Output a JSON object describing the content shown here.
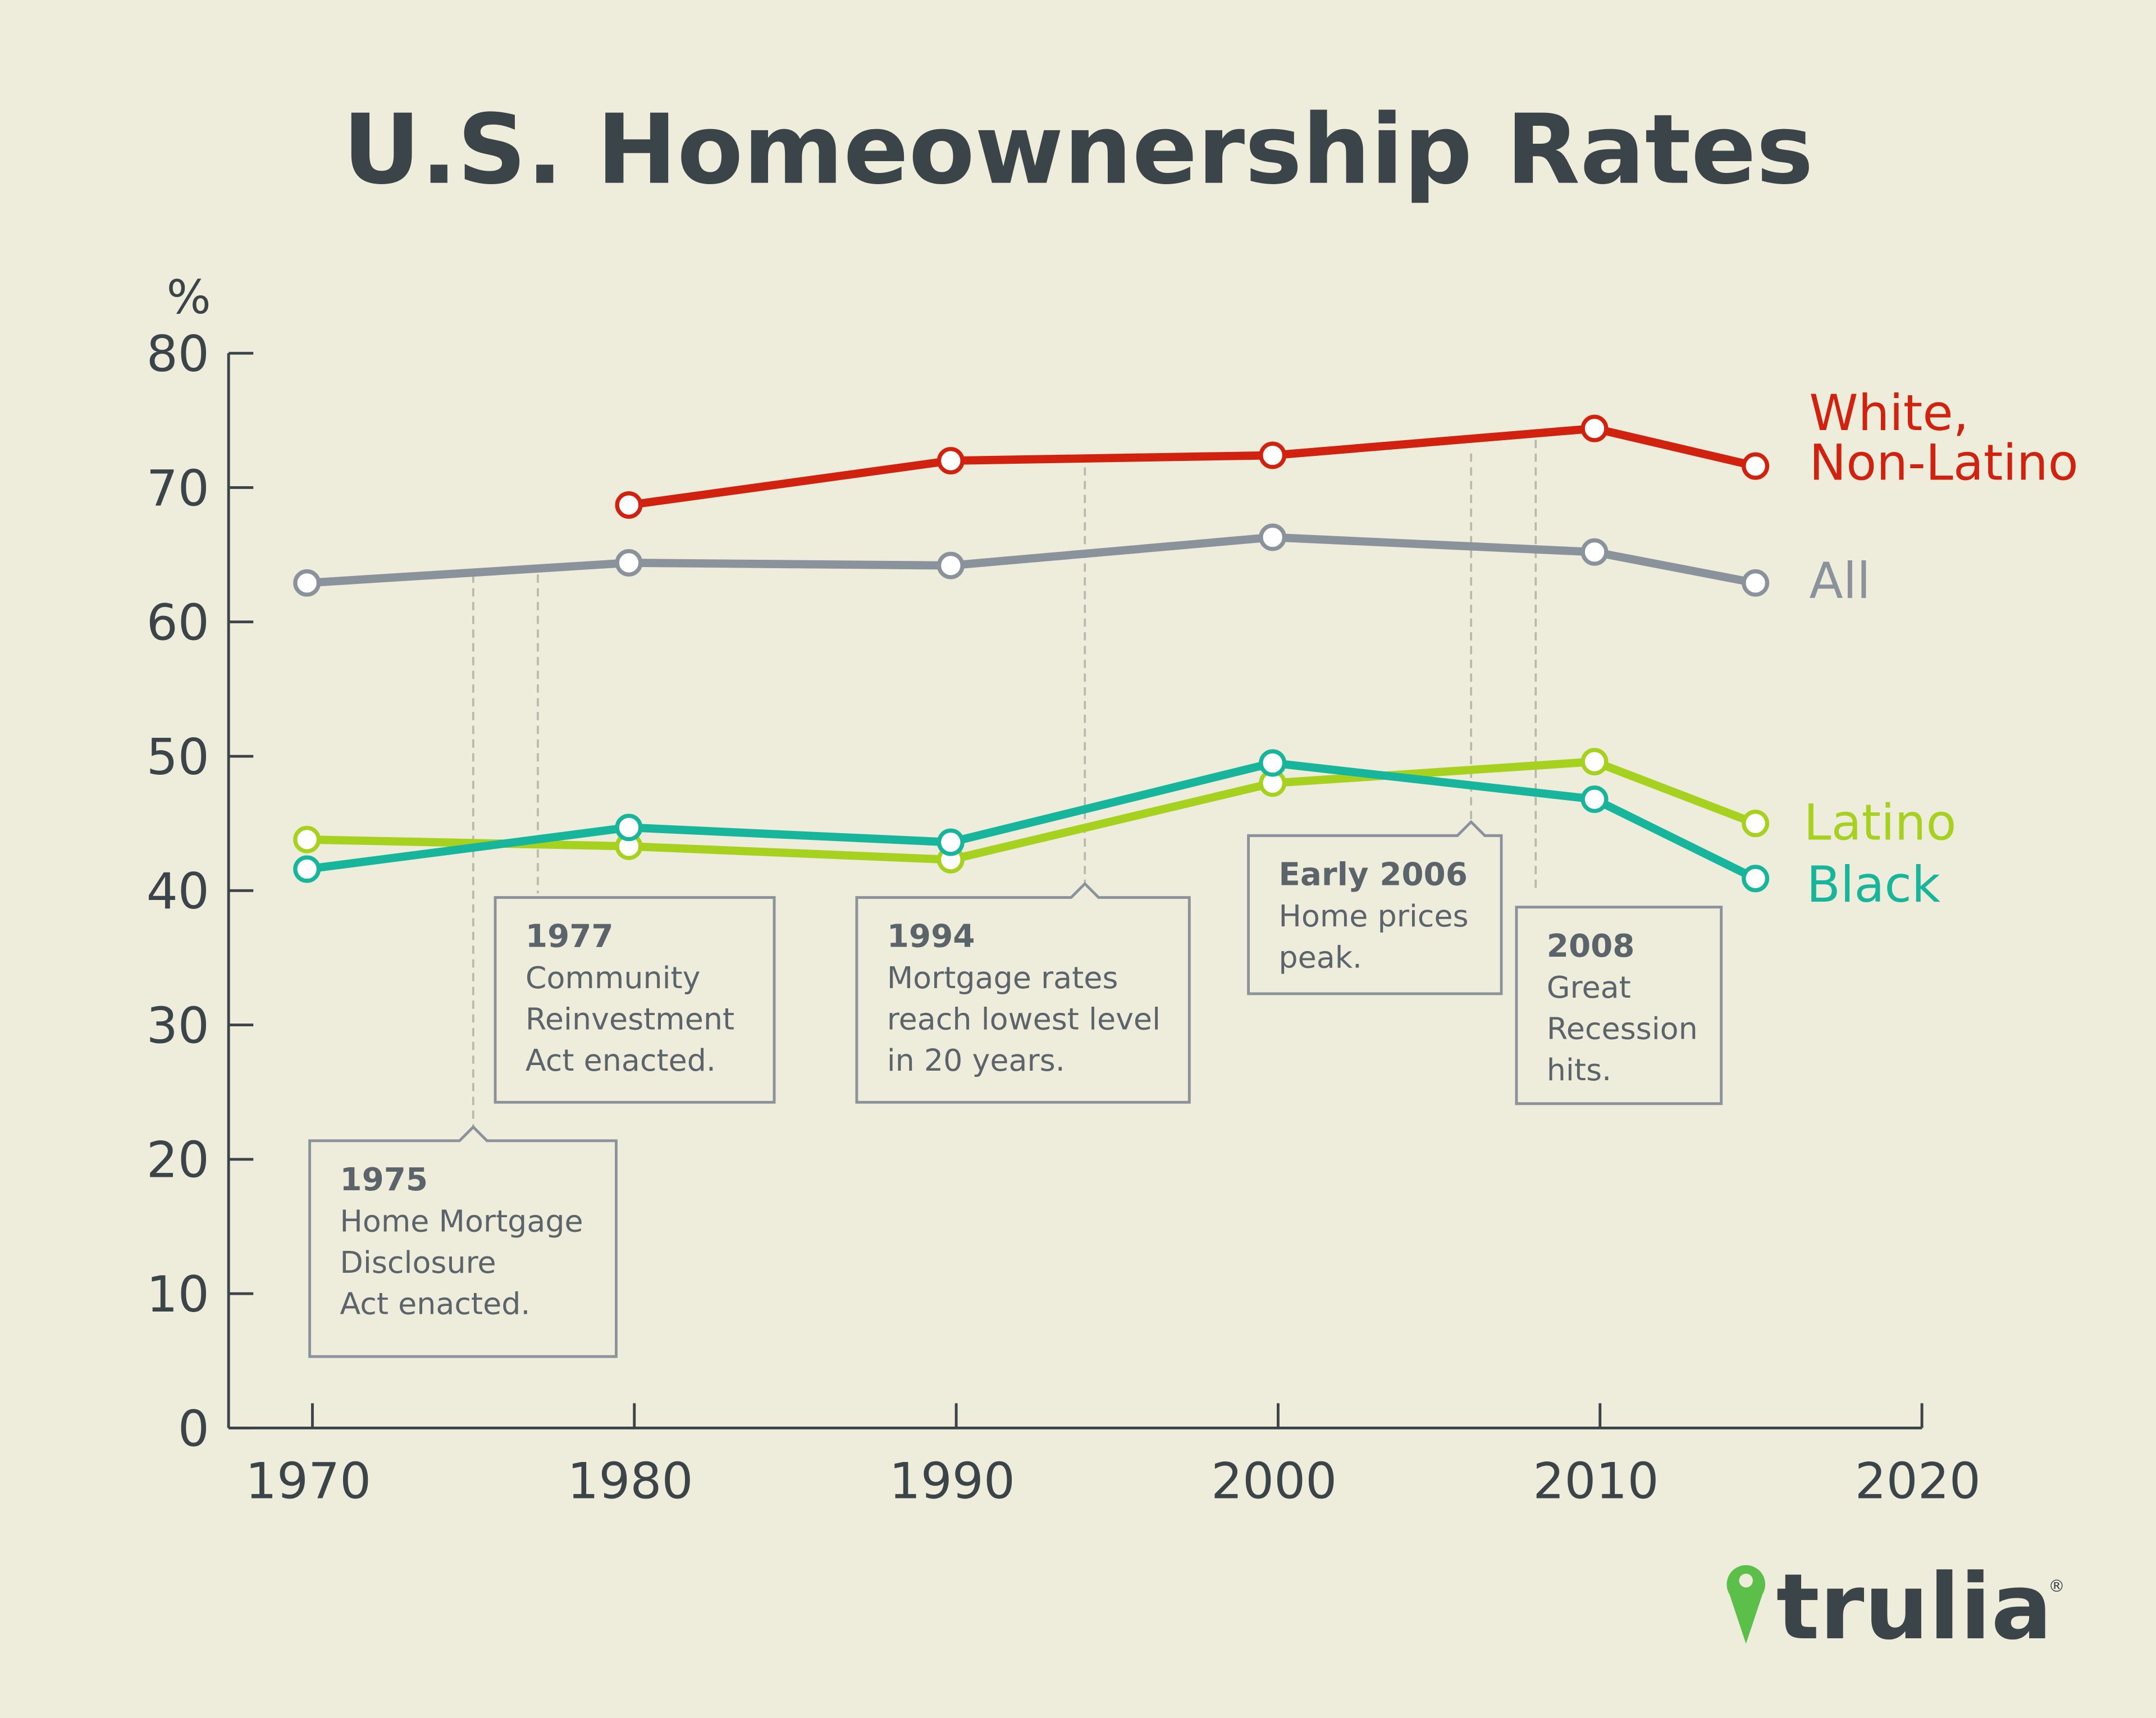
{
  "chart_data": {
    "type": "line",
    "title": "U.S. Homeownership Rates",
    "ylabel": "%",
    "xlabel": "",
    "xlim": [
      1967.5,
      2020
    ],
    "ylim": [
      0,
      80
    ],
    "x_ticks": [
      "1970",
      "1980",
      "1990",
      "2000",
      "2010",
      "2020"
    ],
    "y_ticks": [
      "0",
      "10",
      "20",
      "30",
      "40",
      "50",
      "60",
      "70",
      "80"
    ],
    "grid": false,
    "legend": "inline labels at right end of each series",
    "series": [
      {
        "name": "White, Non-Latino",
        "label_lines": [
          "White,",
          "Non-Latino"
        ],
        "color": "#d0220f",
        "x": [
          1980,
          1990,
          2000,
          2010,
          2015
        ],
        "values": [
          68.7,
          72.0,
          72.4,
          74.4,
          71.6
        ]
      },
      {
        "name": "All",
        "label_lines": [
          "All"
        ],
        "color": "#8a939b",
        "x": [
          1970,
          1980,
          1990,
          2000,
          2010,
          2015
        ],
        "values": [
          62.9,
          64.4,
          64.2,
          66.3,
          65.2,
          62.9
        ]
      },
      {
        "name": "Latino",
        "label_lines": [
          "Latino"
        ],
        "color": "#a6d11f",
        "x": [
          1970,
          1980,
          1990,
          2000,
          2010,
          2015
        ],
        "values": [
          43.8,
          43.3,
          42.3,
          48.0,
          49.6,
          45.0
        ]
      },
      {
        "name": "Black",
        "label_lines": [
          "Black"
        ],
        "color": "#17b59b",
        "x": [
          1970,
          1980,
          1990,
          2000,
          2010,
          2015
        ],
        "values": [
          41.6,
          44.7,
          43.6,
          49.5,
          46.8,
          40.9
        ]
      }
    ],
    "annotations": [
      {
        "year": 1975,
        "title": "1975",
        "lines": [
          "Home Mortgage",
          "Disclosure",
          "Act enacted."
        ]
      },
      {
        "year": 1977,
        "title": "1977",
        "lines": [
          "Community",
          "Reinvestment",
          "Act enacted."
        ]
      },
      {
        "year": 1994,
        "title": "1994",
        "lines": [
          "Mortgage rates",
          "reach lowest level",
          "in 20 years."
        ]
      },
      {
        "year": 2006,
        "title": "Early 2006",
        "lines": [
          "Home prices",
          "peak."
        ]
      },
      {
        "year": 2008,
        "title": "2008",
        "lines": [
          "Great",
          "Recession",
          "hits."
        ]
      }
    ]
  },
  "brand": {
    "name": "trulia",
    "pin_color": "#5bbf4a",
    "text_color": "#3b4448",
    "registered": "®"
  },
  "colors": {
    "background": "#eeecdb",
    "axis": "#3b4448",
    "annotation_box": "#8a939b",
    "annotation_text": "#5a646a"
  }
}
